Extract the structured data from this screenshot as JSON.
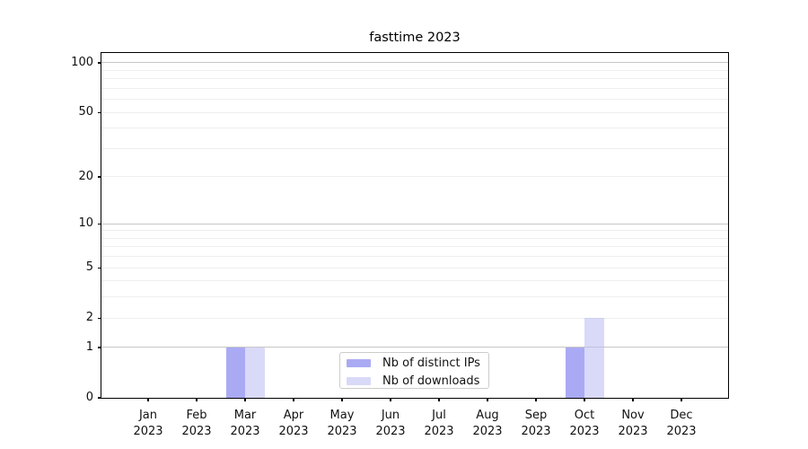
{
  "chart_data": {
    "type": "bar",
    "title": "fasttime 2023",
    "months": [
      "Jan",
      "Feb",
      "Mar",
      "Apr",
      "May",
      "Jun",
      "Jul",
      "Aug",
      "Sep",
      "Oct",
      "Nov",
      "Dec"
    ],
    "year": "2023",
    "series": [
      {
        "name": "Nb of distinct IPs",
        "color": "rgba(100,100,235,0.55)",
        "values": [
          0,
          0,
          1,
          0,
          0,
          0,
          0,
          0,
          0,
          1,
          0,
          0
        ]
      },
      {
        "name": "Nb of downloads",
        "color": "rgba(185,185,242,0.55)",
        "values": [
          0,
          0,
          1,
          0,
          0,
          0,
          0,
          0,
          0,
          2,
          0,
          0
        ]
      }
    ],
    "yscale": "log1p",
    "ylim": [
      0,
      114.7
    ],
    "yticks": [
      0,
      1,
      2,
      5,
      10,
      20,
      50,
      100
    ],
    "grid": {
      "major_values": [
        1,
        10,
        100
      ],
      "minor_values": [
        2,
        3,
        4,
        5,
        6,
        7,
        8,
        9,
        20,
        30,
        40,
        50,
        60,
        70,
        80,
        90
      ],
      "major_color": "#c6c6c6",
      "minor_color": "#eeeeee"
    },
    "legend_position": "lower center",
    "xlabel": "",
    "ylabel": ""
  },
  "colors": {
    "background": "#ffffff",
    "spine": "#000000",
    "text": "#111111"
  }
}
